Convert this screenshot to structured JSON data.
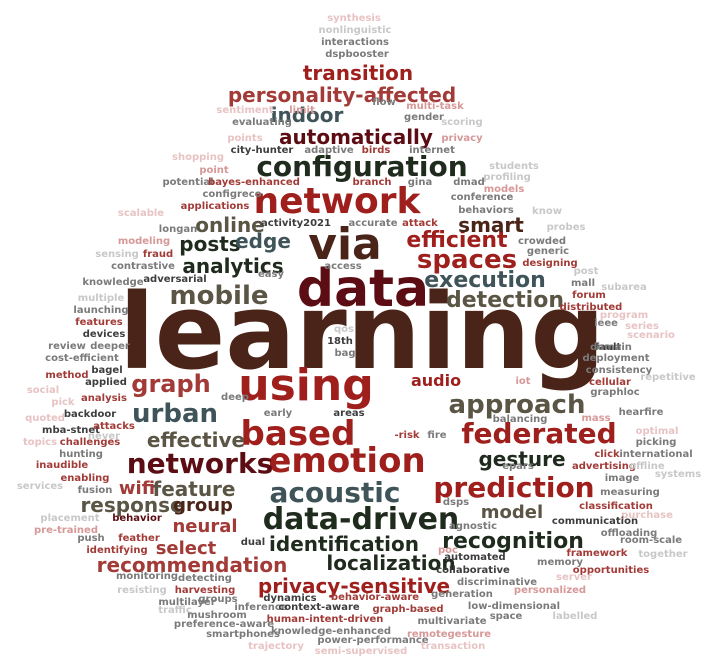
{
  "palette": {
    "darkbrown": "#4a2418",
    "maroon": "#5c0d14",
    "crimson": "#9e1f1c",
    "red": "#a23b37",
    "slate": "#3f5459",
    "forest": "#1f2b1d",
    "olive": "#5b5545",
    "grey": "#7a7a7a",
    "darkgrey": "#3d3d3d",
    "pink": "#d79898",
    "lightpink": "#e8c3c3",
    "lightgrey": "#c8c8c8"
  },
  "words": [
    {
      "t": "learning",
      "c": "darkbrown"
    },
    {
      "t": "data",
      "c": "maroon"
    },
    {
      "t": "via",
      "c": "darkbrown"
    },
    {
      "t": "using",
      "c": "crimson"
    },
    {
      "t": "network",
      "c": "crimson"
    },
    {
      "t": "emotion",
      "c": "crimson"
    },
    {
      "t": "based",
      "c": "crimson"
    },
    {
      "t": "data-driven",
      "c": "forest"
    },
    {
      "t": "configuration",
      "c": "forest"
    },
    {
      "t": "acoustic",
      "c": "slate"
    },
    {
      "t": "prediction",
      "c": "crimson"
    },
    {
      "t": "federated",
      "c": "crimson"
    },
    {
      "t": "networks",
      "c": "maroon"
    },
    {
      "t": "approach",
      "c": "olive"
    },
    {
      "t": "urban",
      "c": "slate"
    },
    {
      "t": "mobile",
      "c": "olive"
    },
    {
      "t": "spaces",
      "c": "crimson"
    },
    {
      "t": "graph",
      "c": "red"
    },
    {
      "t": "recognition",
      "c": "forest"
    },
    {
      "t": "detection",
      "c": "olive"
    },
    {
      "t": "execution",
      "c": "slate"
    },
    {
      "t": "efficient",
      "c": "crimson"
    },
    {
      "t": "personality-affected",
      "c": "red"
    },
    {
      "t": "transition",
      "c": "crimson"
    },
    {
      "t": "automatically",
      "c": "maroon"
    },
    {
      "t": "effective",
      "c": "olive"
    },
    {
      "t": "localization",
      "c": "forest"
    },
    {
      "t": "identification",
      "c": "forest"
    },
    {
      "t": "privacy-sensitive",
      "c": "crimson"
    },
    {
      "t": "recommendation",
      "c": "red"
    },
    {
      "t": "analytics",
      "c": "forest"
    },
    {
      "t": "gesture",
      "c": "forest"
    },
    {
      "t": "response",
      "c": "olive"
    },
    {
      "t": "feature",
      "c": "olive"
    },
    {
      "t": "smart",
      "c": "darkbrown"
    },
    {
      "t": "online",
      "c": "olive"
    },
    {
      "t": "posts",
      "c": "forest"
    },
    {
      "t": "edge",
      "c": "slate"
    },
    {
      "t": "indoor",
      "c": "slate"
    },
    {
      "t": "group",
      "c": "darkbrown"
    },
    {
      "t": "neural",
      "c": "red"
    },
    {
      "t": "select",
      "c": "red"
    },
    {
      "t": "model",
      "c": "olive"
    },
    {
      "t": "wifi",
      "c": "red"
    },
    {
      "t": "audio",
      "c": "crimson"
    },
    {
      "t": "synthesis",
      "c": "lightpink"
    },
    {
      "t": "nonlinguistic",
      "c": "lightgrey"
    },
    {
      "t": "interactions",
      "c": "grey"
    },
    {
      "t": "dspbooster",
      "c": "grey"
    },
    {
      "t": "flow",
      "c": "grey"
    },
    {
      "t": "multi-task",
      "c": "pink"
    },
    {
      "t": "sentiment",
      "c": "lightpink"
    },
    {
      "t": "limit",
      "c": "pink"
    },
    {
      "t": "gender",
      "c": "grey"
    },
    {
      "t": "evaluating",
      "c": "grey"
    },
    {
      "t": "scoring",
      "c": "lightgrey"
    },
    {
      "t": "points",
      "c": "lightpink"
    },
    {
      "t": "privacy",
      "c": "pink"
    },
    {
      "t": "city-hunter",
      "c": "darkgrey"
    },
    {
      "t": "adaptive",
      "c": "grey"
    },
    {
      "t": "birds",
      "c": "red"
    },
    {
      "t": "internet",
      "c": "grey"
    },
    {
      "t": "shopping",
      "c": "lightpink"
    },
    {
      "t": "point",
      "c": "pink"
    },
    {
      "t": "students",
      "c": "lightgrey"
    },
    {
      "t": "potential",
      "c": "grey"
    },
    {
      "t": "bayes-enhanced",
      "c": "red"
    },
    {
      "t": "branch",
      "c": "red"
    },
    {
      "t": "gina",
      "c": "grey"
    },
    {
      "t": "dmad",
      "c": "grey"
    },
    {
      "t": "profiling",
      "c": "lightgrey"
    },
    {
      "t": "models",
      "c": "pink"
    },
    {
      "t": "configreco",
      "c": "grey"
    },
    {
      "t": "conference",
      "c": "grey"
    },
    {
      "t": "applications",
      "c": "red"
    },
    {
      "t": "behaviors",
      "c": "grey"
    },
    {
      "t": "scalable",
      "c": "lightpink"
    },
    {
      "t": "know",
      "c": "lightgrey"
    },
    {
      "t": "longan",
      "c": "grey"
    },
    {
      "t": "activity2021",
      "c": "darkgrey"
    },
    {
      "t": "accurate",
      "c": "grey"
    },
    {
      "t": "attack",
      "c": "red"
    },
    {
      "t": "probes",
      "c": "lightgrey"
    },
    {
      "t": "modeling",
      "c": "pink"
    },
    {
      "t": "crowded",
      "c": "grey"
    },
    {
      "t": "generic",
      "c": "grey"
    },
    {
      "t": "sensing",
      "c": "lightgrey"
    },
    {
      "t": "fraud",
      "c": "red"
    },
    {
      "t": "designing",
      "c": "red"
    },
    {
      "t": "contrastive",
      "c": "grey"
    },
    {
      "t": "access",
      "c": "grey"
    },
    {
      "t": "easy",
      "c": "grey"
    },
    {
      "t": "post",
      "c": "lightgrey"
    },
    {
      "t": "knowledge",
      "c": "grey"
    },
    {
      "t": "adversarial",
      "c": "darkgrey"
    },
    {
      "t": "mall",
      "c": "grey"
    },
    {
      "t": "subarea",
      "c": "lightgrey"
    },
    {
      "t": "multiple",
      "c": "lightgrey"
    },
    {
      "t": "forum",
      "c": "red"
    },
    {
      "t": "launching",
      "c": "grey"
    },
    {
      "t": "distributed",
      "c": "red"
    },
    {
      "t": "program",
      "c": "lightpink"
    },
    {
      "t": "features",
      "c": "red"
    },
    {
      "t": "qos",
      "c": "lightgrey"
    },
    {
      "t": "ieee",
      "c": "grey"
    },
    {
      "t": "series",
      "c": "lightpink"
    },
    {
      "t": "devices",
      "c": "darkgrey"
    },
    {
      "t": "scenario",
      "c": "lightpink"
    },
    {
      "t": "review",
      "c": "grey"
    },
    {
      "t": "deeper",
      "c": "grey"
    },
    {
      "t": "18th",
      "c": "darkgrey"
    },
    {
      "t": "fault",
      "c": "darkgrey"
    },
    {
      "t": "domain",
      "c": "grey"
    },
    {
      "t": "cost-efficient",
      "c": "grey"
    },
    {
      "t": "bag",
      "c": "grey"
    },
    {
      "t": "deployment",
      "c": "grey"
    },
    {
      "t": "bagel",
      "c": "darkgrey"
    },
    {
      "t": "consistency",
      "c": "grey"
    },
    {
      "t": "method",
      "c": "red"
    },
    {
      "t": "iot",
      "c": "pink"
    },
    {
      "t": "cellular",
      "c": "red"
    },
    {
      "t": "repetitive",
      "c": "lightgrey"
    },
    {
      "t": "applied",
      "c": "darkgrey"
    },
    {
      "t": "graphloc",
      "c": "grey"
    },
    {
      "t": "social",
      "c": "lightpink"
    },
    {
      "t": "analysis",
      "c": "red"
    },
    {
      "t": "deep",
      "c": "grey"
    },
    {
      "t": "hearfire",
      "c": "grey"
    },
    {
      "t": "pick",
      "c": "lightpink"
    },
    {
      "t": "early",
      "c": "grey"
    },
    {
      "t": "areas",
      "c": "darkgrey"
    },
    {
      "t": "balancing",
      "c": "grey"
    },
    {
      "t": "mass",
      "c": "pink"
    },
    {
      "t": "quoted",
      "c": "lightpink"
    },
    {
      "t": "backdoor",
      "c": "darkgrey"
    },
    {
      "t": "optimal",
      "c": "lightpink"
    },
    {
      "t": "mba-stnet",
      "c": "darkgrey"
    },
    {
      "t": "attacks",
      "c": "red"
    },
    {
      "t": "picking",
      "c": "grey"
    },
    {
      "t": "never",
      "c": "lightgrey"
    },
    {
      "t": "challenges",
      "c": "red"
    },
    {
      "t": "-risk",
      "c": "red"
    },
    {
      "t": "fire",
      "c": "grey"
    },
    {
      "t": "international",
      "c": "grey"
    },
    {
      "t": "topics",
      "c": "lightpink"
    },
    {
      "t": "hunting",
      "c": "grey"
    },
    {
      "t": "epars",
      "c": "grey"
    },
    {
      "t": "click",
      "c": "red"
    },
    {
      "t": "advertising",
      "c": "red"
    },
    {
      "t": "offline",
      "c": "lightgrey"
    },
    {
      "t": "inaudible",
      "c": "red"
    },
    {
      "t": "image",
      "c": "grey"
    },
    {
      "t": "systems",
      "c": "lightgrey"
    },
    {
      "t": "enabling",
      "c": "red"
    },
    {
      "t": "services",
      "c": "lightgrey"
    },
    {
      "t": "fusion",
      "c": "grey"
    },
    {
      "t": "measuring",
      "c": "grey"
    },
    {
      "t": "dsps",
      "c": "grey"
    },
    {
      "t": "classification",
      "c": "red"
    },
    {
      "t": "purchase",
      "c": "lightpink"
    },
    {
      "t": "placement",
      "c": "lightgrey"
    },
    {
      "t": "behavior",
      "c": "maroon"
    },
    {
      "t": "agnostic",
      "c": "grey"
    },
    {
      "t": "communication",
      "c": "darkgrey"
    },
    {
      "t": "room-scale",
      "c": "grey"
    },
    {
      "t": "pre-trained",
      "c": "pink"
    },
    {
      "t": "offloading",
      "c": "grey"
    },
    {
      "t": "push",
      "c": "grey"
    },
    {
      "t": "feather",
      "c": "red"
    },
    {
      "t": "identifying",
      "c": "red"
    },
    {
      "t": "dual",
      "c": "darkgrey"
    },
    {
      "t": "poc",
      "c": "pink"
    },
    {
      "t": "framework",
      "c": "red"
    },
    {
      "t": "together",
      "c": "lightgrey"
    },
    {
      "t": "automated",
      "c": "darkgrey"
    },
    {
      "t": "memory",
      "c": "grey"
    },
    {
      "t": "collaborative",
      "c": "darkgrey"
    },
    {
      "t": "opportunities",
      "c": "red"
    },
    {
      "t": "monitoring",
      "c": "grey"
    },
    {
      "t": "detecting",
      "c": "grey"
    },
    {
      "t": "discriminative",
      "c": "grey"
    },
    {
      "t": "server",
      "c": "lightpink"
    },
    {
      "t": "resisting",
      "c": "lightgrey"
    },
    {
      "t": "harvesting",
      "c": "red"
    },
    {
      "t": "personalized",
      "c": "pink"
    },
    {
      "t": "dynamics",
      "c": "darkgrey"
    },
    {
      "t": "behavior-aware",
      "c": "red"
    },
    {
      "t": "generation",
      "c": "grey"
    },
    {
      "t": "multilayer",
      "c": "grey"
    },
    {
      "t": "inference",
      "c": "grey"
    },
    {
      "t": "context-aware",
      "c": "darkgrey"
    },
    {
      "t": "graph-based",
      "c": "red"
    },
    {
      "t": "low-dimensional",
      "c": "grey"
    },
    {
      "t": "traffic",
      "c": "lightgrey"
    },
    {
      "t": "mushroom",
      "c": "grey"
    },
    {
      "t": "human-intent-driven",
      "c": "red"
    },
    {
      "t": "space",
      "c": "grey"
    },
    {
      "t": "labelled",
      "c": "lightgrey"
    },
    {
      "t": "preference-aware",
      "c": "grey"
    },
    {
      "t": "multivariate",
      "c": "grey"
    },
    {
      "t": "smartphones",
      "c": "grey"
    },
    {
      "t": "knowledge-enhanced",
      "c": "grey"
    },
    {
      "t": "remotegesture",
      "c": "pink"
    },
    {
      "t": "power-performance",
      "c": "grey"
    },
    {
      "t": "trajectory",
      "c": "lightpink"
    },
    {
      "t": "semi-supervised",
      "c": "lightpink"
    },
    {
      "t": "transaction",
      "c": "lightpink"
    },
    {
      "t": "groups",
      "c": "grey"
    }
  ]
}
